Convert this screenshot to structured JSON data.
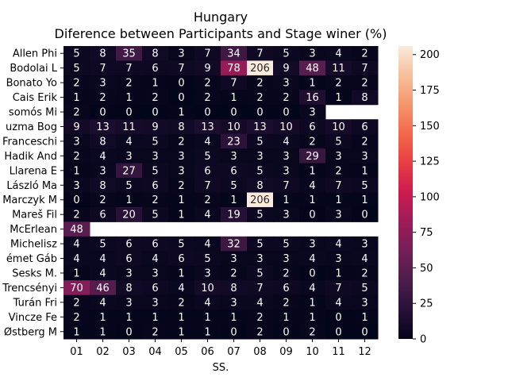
{
  "chart_data": {
    "type": "heatmap",
    "title": "Hungary",
    "subtitle": "Diference between Participants and Stage winer (%)",
    "xlabel": "SS.",
    "ylabel": "",
    "x": [
      "01",
      "02",
      "03",
      "04",
      "05",
      "06",
      "07",
      "08",
      "09",
      "10",
      "11",
      "12"
    ],
    "y": [
      "Allen  Phi",
      "Bodolai  L",
      "Bonato  Yo",
      "Cais  Erik",
      "somós  Mi",
      "uzma  Bog",
      "Franceschi",
      "Hadik  And",
      "Llarena  E",
      "László  Ma",
      "Marczyk  M",
      "Mareš  Fil",
      "McErlean",
      "Michelisz",
      "émet  Gáb",
      "Sesks  M.",
      "Trencsényi",
      "Turán  Fri",
      "Vincze  Fe",
      "Østberg  M"
    ],
    "values": [
      [
        5,
        8,
        35,
        8,
        3,
        7,
        34,
        7,
        5,
        3,
        4,
        2
      ],
      [
        5,
        7,
        7,
        6,
        7,
        9,
        78,
        206,
        9,
        48,
        11,
        7
      ],
      [
        2,
        3,
        2,
        1,
        0,
        2,
        7,
        2,
        3,
        1,
        2,
        2
      ],
      [
        1,
        2,
        1,
        2,
        0,
        2,
        1,
        2,
        2,
        16,
        1,
        8
      ],
      [
        2,
        0,
        0,
        0,
        1,
        0,
        0,
        0,
        0,
        3,
        null,
        null
      ],
      [
        9,
        13,
        11,
        9,
        8,
        13,
        10,
        13,
        10,
        6,
        10,
        6
      ],
      [
        3,
        8,
        4,
        5,
        2,
        4,
        23,
        5,
        4,
        2,
        5,
        2
      ],
      [
        2,
        4,
        3,
        3,
        3,
        5,
        3,
        3,
        3,
        29,
        3,
        3
      ],
      [
        1,
        3,
        27,
        5,
        3,
        6,
        6,
        5,
        3,
        1,
        2,
        1
      ],
      [
        3,
        8,
        5,
        6,
        2,
        7,
        5,
        8,
        7,
        4,
        7,
        5
      ],
      [
        0,
        2,
        1,
        2,
        1,
        2,
        1,
        206,
        1,
        1,
        1,
        1
      ],
      [
        2,
        6,
        20,
        5,
        1,
        4,
        19,
        5,
        3,
        0,
        3,
        0
      ],
      [
        48,
        null,
        null,
        null,
        null,
        null,
        null,
        null,
        null,
        null,
        null,
        null
      ],
      [
        4,
        5,
        6,
        6,
        5,
        4,
        32,
        5,
        5,
        3,
        4,
        3
      ],
      [
        4,
        4,
        6,
        4,
        6,
        5,
        3,
        3,
        3,
        4,
        3,
        4
      ],
      [
        1,
        4,
        3,
        3,
        1,
        3,
        2,
        5,
        2,
        0,
        1,
        2
      ],
      [
        70,
        46,
        8,
        6,
        4,
        10,
        8,
        7,
        6,
        4,
        7,
        5
      ],
      [
        2,
        4,
        3,
        3,
        2,
        4,
        3,
        4,
        2,
        1,
        4,
        3
      ],
      [
        2,
        1,
        1,
        1,
        1,
        1,
        1,
        2,
        1,
        1,
        0,
        1
      ],
      [
        1,
        1,
        0,
        2,
        1,
        1,
        0,
        2,
        0,
        2,
        0,
        0
      ]
    ],
    "colorbar": {
      "min": 0,
      "max": 206,
      "ticks": [
        0,
        25,
        50,
        75,
        100,
        125,
        150,
        175,
        200
      ]
    },
    "colormap": "rocket"
  }
}
